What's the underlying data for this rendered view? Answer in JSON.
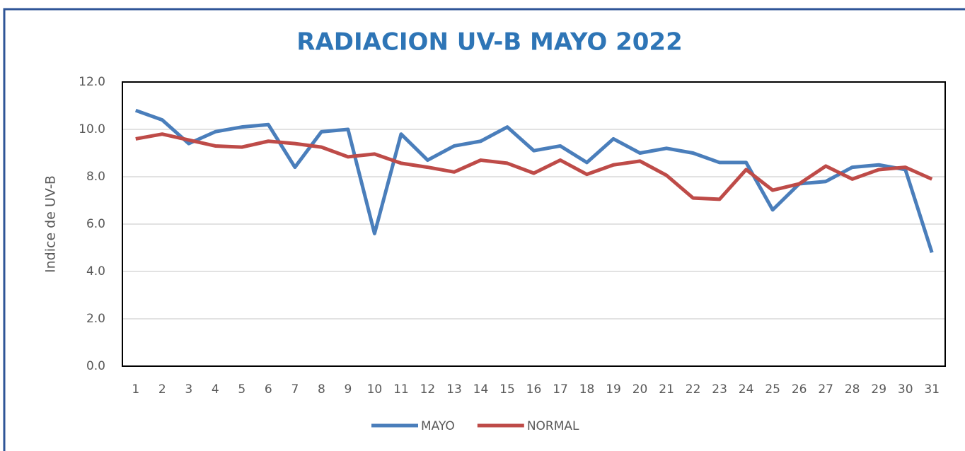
{
  "chart_data": {
    "type": "line",
    "title": "RADIACION UV-B MAYO 2022",
    "y_label": "Indice de UV-B",
    "categories": [
      "1",
      "2",
      "3",
      "4",
      "5",
      "6",
      "7",
      "8",
      "9",
      "10",
      "11",
      "12",
      "13",
      "14",
      "15",
      "16",
      "17",
      "18",
      "19",
      "20",
      "21",
      "22",
      "23",
      "24",
      "25",
      "26",
      "27",
      "28",
      "29",
      "30",
      "31"
    ],
    "series": [
      {
        "name": "MAYO",
        "color": "#4a7ebb",
        "values": [
          10.8,
          10.4,
          9.4,
          9.9,
          10.1,
          10.2,
          8.4,
          9.9,
          10.0,
          5.6,
          9.8,
          8.7,
          9.3,
          9.5,
          10.1,
          9.1,
          9.3,
          8.6,
          9.6,
          9.0,
          9.2,
          9.0,
          8.6,
          8.6,
          6.6,
          7.7,
          7.8,
          8.4,
          8.5,
          8.3,
          4.8
        ]
      },
      {
        "name": "NORMAL",
        "color": "#be4b48",
        "values": [
          9.6,
          9.8,
          9.55,
          9.3,
          9.25,
          9.5,
          9.4,
          9.25,
          8.84,
          8.96,
          8.57,
          8.4,
          8.2,
          8.7,
          8.57,
          8.15,
          8.7,
          8.1,
          8.5,
          8.66,
          8.06,
          7.1,
          7.05,
          8.3,
          7.43,
          7.7,
          8.45,
          7.9,
          8.3,
          8.4,
          7.9
        ]
      }
    ],
    "ylim": [
      0,
      12
    ],
    "yticks": [
      {
        "value": 0,
        "label": "0.0"
      },
      {
        "value": 2,
        "label": "2.0"
      },
      {
        "value": 4,
        "label": "4.0"
      },
      {
        "value": 6,
        "label": "6.0"
      },
      {
        "value": 8,
        "label": "8.0"
      },
      {
        "value": 10,
        "label": "10.0"
      },
      {
        "value": 12,
        "label": "12.0"
      }
    ],
    "grid": true
  }
}
